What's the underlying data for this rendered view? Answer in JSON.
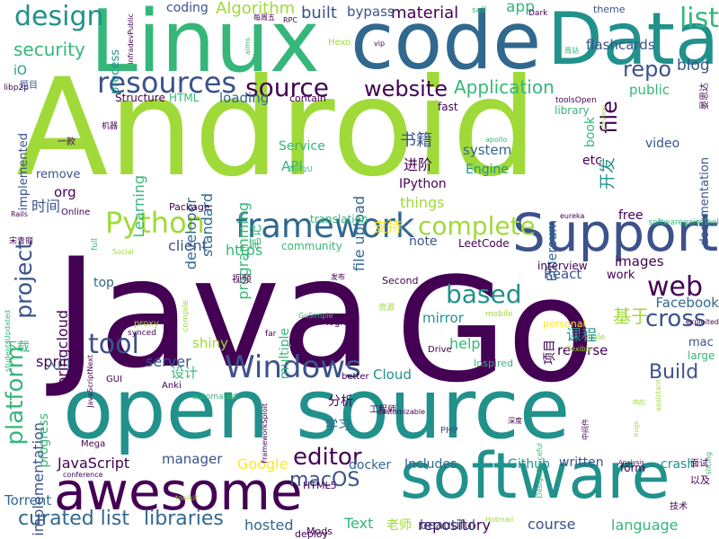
{
  "palette": {
    "purple": "#440154",
    "indigo": "#3b528b",
    "blue": "#31688e",
    "teal": "#21918c",
    "green": "#35b779",
    "lime": "#a0da39",
    "yellow": "#fde725"
  },
  "words": [
    {
      "text": "Android",
      "color": "lime"
    },
    {
      "text": "Java",
      "color": "purple"
    },
    {
      "text": "Go",
      "color": "purple"
    },
    {
      "text": "Linux",
      "color": "green"
    },
    {
      "text": "code",
      "color": "blue"
    },
    {
      "text": "Data",
      "color": "teal"
    },
    {
      "text": "open source",
      "color": "teal"
    },
    {
      "text": "software",
      "color": "teal"
    },
    {
      "text": "awesome",
      "color": "purple"
    },
    {
      "text": "Support",
      "color": "indigo"
    },
    {
      "text": "Windows",
      "color": "indigo"
    },
    {
      "text": "framework",
      "color": "blue"
    },
    {
      "text": "Python",
      "color": "lime"
    },
    {
      "text": "resources",
      "color": "indigo"
    },
    {
      "text": "design",
      "color": "teal"
    },
    {
      "text": "list",
      "color": "green"
    },
    {
      "text": "web",
      "color": "purple"
    },
    {
      "text": "source",
      "color": "purple"
    },
    {
      "text": "website",
      "color": "purple"
    },
    {
      "text": "based",
      "color": "teal"
    },
    {
      "text": "complete",
      "color": "lime"
    },
    {
      "text": "project",
      "color": "indigo"
    },
    {
      "text": "platform",
      "color": "green"
    },
    {
      "text": "tool",
      "color": "indigo"
    },
    {
      "text": "editor",
      "color": "purple"
    },
    {
      "text": "cross",
      "color": "indigo"
    },
    {
      "text": "Build",
      "color": "indigo"
    },
    {
      "text": "repo",
      "color": "indigo"
    },
    {
      "text": "file",
      "color": "purple"
    },
    {
      "text": "Application",
      "color": "green"
    },
    {
      "text": "security",
      "color": "green"
    },
    {
      "text": "macOS",
      "color": "indigo"
    },
    {
      "text": "curated list",
      "color": "blue"
    },
    {
      "text": "libraries",
      "color": "blue"
    },
    {
      "text": "Algorithm",
      "color": "lime"
    },
    {
      "text": "material",
      "color": "purple"
    },
    {
      "text": "built",
      "color": "indigo"
    },
    {
      "text": "blog",
      "color": "indigo"
    },
    {
      "text": "flashcards",
      "color": "indigo"
    },
    {
      "text": "app",
      "color": "green"
    },
    {
      "text": "bypass",
      "color": "indigo"
    },
    {
      "text": "coding",
      "color": "indigo"
    },
    {
      "text": "theme",
      "color": "indigo"
    },
    {
      "text": "loading",
      "color": "blue"
    },
    {
      "text": "public",
      "color": "green"
    },
    {
      "text": "https",
      "color": "green"
    },
    {
      "text": "client",
      "color": "indigo"
    },
    {
      "text": "server",
      "color": "indigo"
    },
    {
      "text": "implementation",
      "color": "indigo"
    },
    {
      "text": "JavaScript",
      "color": "purple"
    },
    {
      "text": "Google",
      "color": "yellow"
    },
    {
      "text": "hosted",
      "color": "blue"
    },
    {
      "text": "Text",
      "color": "green"
    },
    {
      "text": "repository",
      "color": "purple"
    },
    {
      "text": "course",
      "color": "indigo"
    },
    {
      "text": "language",
      "color": "green"
    },
    {
      "text": "beautiful",
      "color": "indigo"
    },
    {
      "text": "manager",
      "color": "indigo"
    },
    {
      "text": "written",
      "color": "indigo"
    },
    {
      "text": "docker",
      "color": "blue"
    },
    {
      "text": "Includes",
      "color": "blue"
    },
    {
      "text": "Github",
      "color": "teal"
    },
    {
      "text": "crash",
      "color": "teal"
    },
    {
      "text": "Torrent",
      "color": "blue"
    },
    {
      "text": "Facebook",
      "color": "blue"
    },
    {
      "text": "images",
      "color": "purple"
    },
    {
      "text": "React",
      "color": "indigo"
    },
    {
      "text": "mirror",
      "color": "teal"
    },
    {
      "text": "reverse",
      "color": "purple"
    },
    {
      "text": "help",
      "color": "green"
    },
    {
      "text": "Cloud",
      "color": "teal"
    },
    {
      "text": "things",
      "color": "lime"
    },
    {
      "text": "note",
      "color": "indigo"
    },
    {
      "text": "API",
      "color": "green"
    },
    {
      "text": "org",
      "color": "purple"
    },
    {
      "text": "system",
      "color": "blue"
    },
    {
      "text": "Engine",
      "color": "teal"
    },
    {
      "text": "Service",
      "color": "green"
    },
    {
      "text": "file upload",
      "color": "blue"
    },
    {
      "text": "Learning",
      "color": "green"
    },
    {
      "text": "developer",
      "color": "blue"
    },
    {
      "text": "standard",
      "color": "blue"
    },
    {
      "text": "programming",
      "color": "green"
    },
    {
      "text": "springcloud",
      "color": "purple"
    },
    {
      "text": "spring",
      "color": "purple"
    },
    {
      "text": "shiny",
      "color": "lime"
    },
    {
      "text": "top",
      "color": "blue"
    },
    {
      "text": "multiple",
      "color": "green"
    },
    {
      "text": "progress",
      "color": "green"
    },
    {
      "text": "Ethereum",
      "color": "blue"
    },
    {
      "text": "etc",
      "color": "purple"
    },
    {
      "text": "free",
      "color": "purple"
    },
    {
      "text": "video",
      "color": "indigo"
    },
    {
      "text": "documentation",
      "color": "indigo"
    },
    {
      "text": "book",
      "color": "green"
    },
    {
      "text": "mac",
      "color": "indigo"
    },
    {
      "text": "large",
      "color": "green"
    },
    {
      "text": "process",
      "color": "teal"
    },
    {
      "text": "implemented",
      "color": "indigo"
    },
    {
      "text": "remove",
      "color": "indigo"
    },
    {
      "text": "Structure",
      "color": "purple"
    },
    {
      "text": "HTML",
      "color": "green"
    },
    {
      "text": "fast",
      "color": "purple"
    },
    {
      "text": "library",
      "color": "green"
    },
    {
      "text": "contain",
      "color": "purple"
    },
    {
      "text": "IPython",
      "color": "purple"
    },
    {
      "text": "work",
      "color": "purple"
    },
    {
      "text": "interview",
      "color": "purple"
    },
    {
      "text": "LeetCode",
      "color": "purple"
    },
    {
      "text": "personal",
      "color": "yellow"
    },
    {
      "text": "Second",
      "color": "purple"
    },
    {
      "text": "community",
      "color": "green"
    },
    {
      "text": "translation",
      "color": "green"
    },
    {
      "text": "Package",
      "color": "purple"
    },
    {
      "text": "Online",
      "color": "purple"
    },
    {
      "text": "HTML5",
      "color": "purple"
    },
    {
      "text": "deploy",
      "color": "purple"
    },
    {
      "text": "form",
      "color": "purple"
    },
    {
      "text": "Mods",
      "color": "purple"
    },
    {
      "text": "PHP",
      "color": "indigo"
    },
    {
      "text": "GUI",
      "color": "purple"
    },
    {
      "text": "Anki",
      "color": "purple"
    },
    {
      "text": "Mega",
      "color": "purple"
    },
    {
      "text": "far",
      "color": "purple"
    },
    {
      "text": "logic",
      "color": "purple"
    },
    {
      "text": "Drive",
      "color": "purple"
    },
    {
      "text": "Inspired",
      "color": "green"
    },
    {
      "text": "Hexo",
      "color": "lime"
    },
    {
      "text": "RPC",
      "color": "purple"
    },
    {
      "text": "Dark",
      "color": "purple"
    },
    {
      "text": "self",
      "color": "green"
    },
    {
      "text": "vip",
      "color": "purple"
    },
    {
      "text": "aims",
      "color": "green"
    },
    {
      "text": "iO",
      "color": "teal"
    },
    {
      "text": "libp2p",
      "color": "purple"
    },
    {
      "text": "GoSimple",
      "color": "green"
    },
    {
      "text": "synced",
      "color": "purple"
    },
    {
      "text": "compile",
      "color": "lime"
    },
    {
      "text": "proxy",
      "color": "lime"
    },
    {
      "text": "better",
      "color": "purple"
    },
    {
      "text": "automated",
      "color": "green"
    },
    {
      "text": "eureka",
      "color": "purple"
    },
    {
      "text": "exploited",
      "color": "purple"
    },
    {
      "text": "mobile",
      "color": "lime"
    },
    {
      "text": "scale",
      "color": "lime"
    },
    {
      "text": "full",
      "color": "green"
    },
    {
      "text": "Social",
      "color": "lime"
    },
    {
      "text": "apollo",
      "color": "green"
    },
    {
      "text": "assistant",
      "color": "lime"
    },
    {
      "text": "flexible",
      "color": "lime"
    },
    {
      "text": "customizable",
      "color": "purple"
    },
    {
      "text": "conference",
      "color": "purple"
    },
    {
      "text": "toolkit",
      "color": "lime"
    },
    {
      "text": "Hotmail",
      "color": "lime"
    },
    {
      "text": "Analysis",
      "color": "purple"
    },
    {
      "text": "Rails",
      "color": "purple"
    },
    {
      "text": "softwaregoimTool",
      "color": "green"
    },
    {
      "text": "toolsOpen",
      "color": "purple"
    },
    {
      "text": "infradevPublic",
      "color": "purple"
    },
    {
      "text": "JavaScriptNext",
      "color": "purple"
    },
    {
      "text": "FrameworkSploit",
      "color": "purple"
    },
    {
      "text": "DesignGraceful",
      "color": "green"
    },
    {
      "text": "studentsUpdated",
      "color": "green"
    },
    {
      "text": "preview",
      "color": "lime"
    },
    {
      "text": "slicing",
      "color": "green"
    },
    {
      "text": "bugs",
      "color": "lime"
    },
    {
      "text": "书籍",
      "color": "indigo"
    },
    {
      "text": "进阶",
      "color": "purple"
    },
    {
      "text": "开发",
      "color": "teal"
    },
    {
      "text": "时间",
      "color": "indigo"
    },
    {
      "text": "笔记",
      "color": "green"
    },
    {
      "text": "支持",
      "color": "yellow"
    },
    {
      "text": "基于",
      "color": "lime"
    },
    {
      "text": "课程",
      "color": "teal"
    },
    {
      "text": "设计",
      "color": "green"
    },
    {
      "text": "分析",
      "color": "purple"
    },
    {
      "text": "学习",
      "color": "blue"
    },
    {
      "text": "入门",
      "color": "blue"
    },
    {
      "text": "下载",
      "color": "green"
    },
    {
      "text": "老师",
      "color": "lime"
    },
    {
      "text": "项目",
      "color": "purple"
    },
    {
      "text": "工程师",
      "color": "purple"
    },
    {
      "text": "以及",
      "color": "purple"
    },
    {
      "text": "面试",
      "color": "purple"
    },
    {
      "text": "技术",
      "color": "purple"
    },
    {
      "text": "视频",
      "color": "purple"
    },
    {
      "text": "发布",
      "color": "purple"
    },
    {
      "text": "资源",
      "color": "lime"
    },
    {
      "text": "题目",
      "color": "indigo"
    },
    {
      "text": "一款",
      "color": "purple"
    },
    {
      "text": "机器",
      "color": "purple"
    },
    {
      "text": "宋青丽",
      "color": "purple"
    },
    {
      "text": "每周五",
      "color": "purple"
    },
    {
      "text": "深度",
      "color": "purple"
    },
    {
      "text": "中间件",
      "color": "purple"
    },
    {
      "text": "响应",
      "color": "lime"
    },
    {
      "text": "周站",
      "color": "green"
    },
    {
      "text": "晏思达",
      "color": "purple"
    },
    {
      "text": "ZipTzU",
      "color": "green"
    }
  ]
}
